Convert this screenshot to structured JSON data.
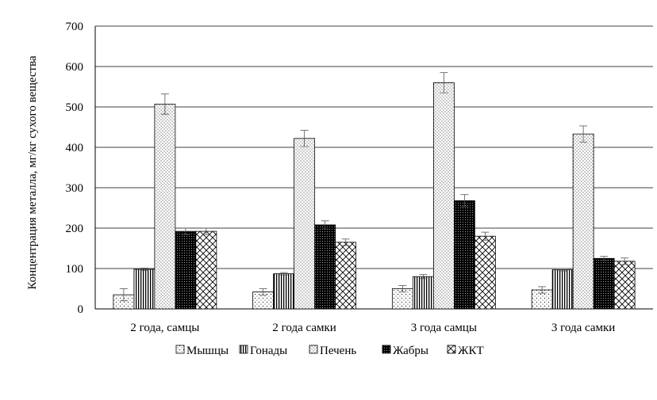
{
  "chart_data": {
    "type": "bar",
    "title": "",
    "xlabel": "",
    "ylabel": "Концентрация металла,  мг/кг сухого вещества",
    "ylim": [
      0,
      700
    ],
    "yticks": [
      0,
      100,
      200,
      300,
      400,
      500,
      600,
      700
    ],
    "grid": true,
    "legend_position": "bottom",
    "categories": [
      "2 года, самцы",
      "2 года самки",
      "3 года самцы",
      "3 года самки"
    ],
    "series": [
      {
        "name": "Мышцы",
        "pattern": "dots",
        "values": [
          35,
          42,
          50,
          47
        ],
        "errors": [
          15,
          8,
          8,
          8
        ]
      },
      {
        "name": "Гонады",
        "pattern": "vlines",
        "values": [
          98,
          87,
          80,
          97
        ],
        "errors": [
          3,
          3,
          5,
          3
        ]
      },
      {
        "name": "Печень",
        "pattern": "sparse-dots",
        "values": [
          507,
          422,
          560,
          433
        ],
        "errors": [
          25,
          20,
          25,
          20
        ]
      },
      {
        "name": "Жабры",
        "pattern": "dark",
        "values": [
          192,
          208,
          268,
          125
        ],
        "errors": [
          8,
          10,
          15,
          5
        ]
      },
      {
        "name": "ЖКТ",
        "pattern": "zigzag",
        "values": [
          192,
          165,
          180,
          118
        ],
        "errors": [
          8,
          8,
          10,
          8
        ]
      }
    ]
  }
}
